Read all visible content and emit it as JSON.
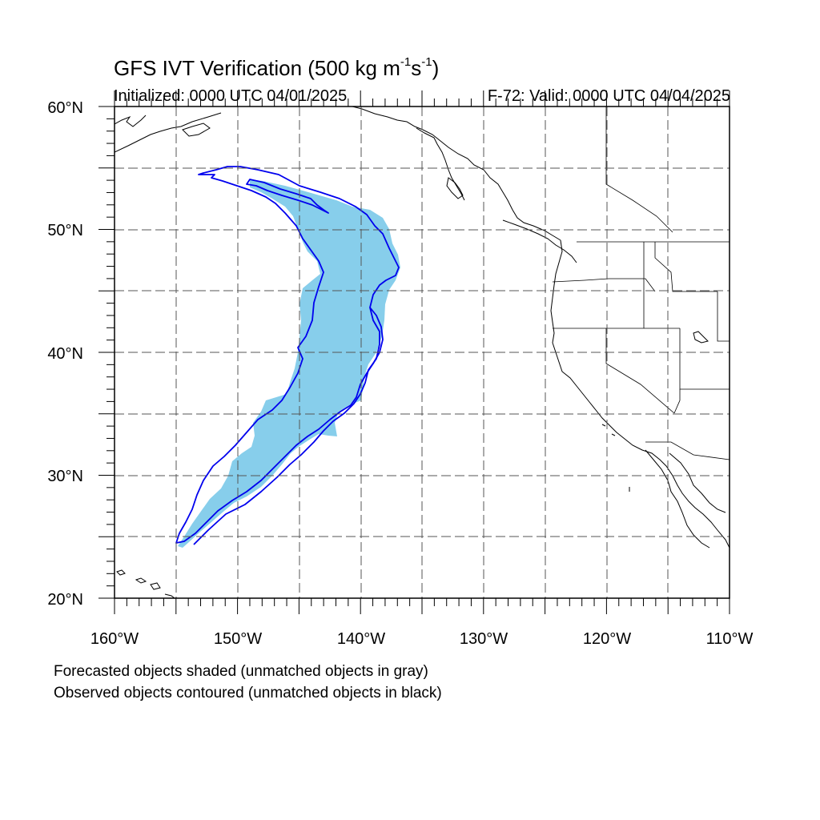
{
  "header": {
    "title_main": "GFS IVT Verification (500 kg m",
    "title_sup1": "-1",
    "title_mid": "s",
    "title_sup2": "-1",
    "title_end": ")",
    "initialized": "Initialized: 0000 UTC 04/01/2025",
    "valid": "F-72: Valid: 0000 UTC 04/04/2025"
  },
  "map": {
    "lon_labels": [
      "160°W",
      "150°W",
      "140°W",
      "130°W",
      "120°W",
      "110°W"
    ],
    "lat_labels": [
      "60°N",
      "50°N",
      "40°N",
      "30°N",
      "20°N"
    ],
    "lon_range": [
      -160,
      -110
    ],
    "lat_range": [
      20,
      60
    ],
    "grid_style": "dashed",
    "forecast_color": "#87ceeb",
    "observed_color": "#0000ff"
  },
  "notes": {
    "line1": "Forecasted objects shaded (unmatched objects in gray)",
    "line2": "Observed objects contoured (unmatched objects in black)"
  }
}
